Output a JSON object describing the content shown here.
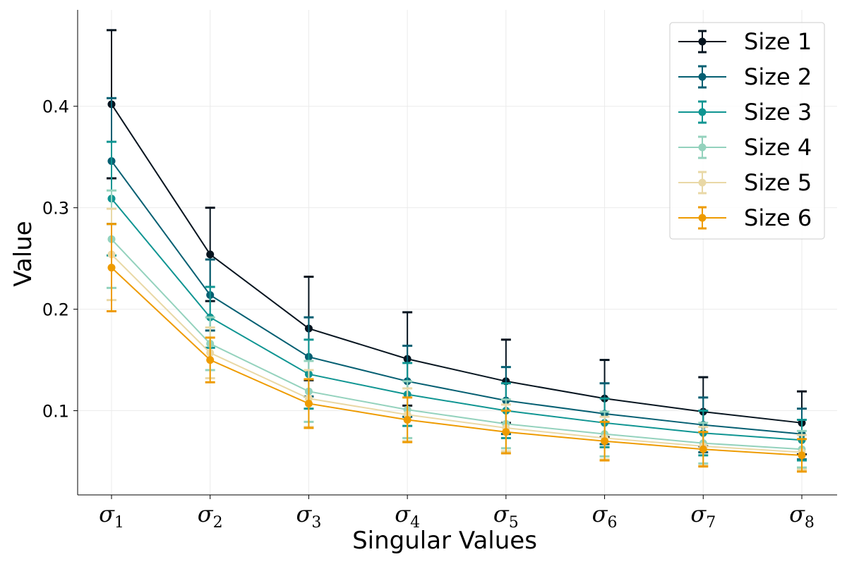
{
  "chart_data": {
    "type": "line",
    "title": "",
    "xlabel": "Singular Values",
    "ylabel": "Value",
    "categories": [
      {
        "base": "σ",
        "sub": "1"
      },
      {
        "base": "σ",
        "sub": "2"
      },
      {
        "base": "σ",
        "sub": "3"
      },
      {
        "base": "σ",
        "sub": "4"
      },
      {
        "base": "σ",
        "sub": "5"
      },
      {
        "base": "σ",
        "sub": "6"
      },
      {
        "base": "σ",
        "sub": "7"
      },
      {
        "base": "σ",
        "sub": "8"
      }
    ],
    "ylim": [
      0.017,
      0.495
    ],
    "yticks": [
      0.1,
      0.2,
      0.3,
      0.4
    ],
    "ytick_labels": [
      "0.1",
      "0.2",
      "0.3",
      "0.4"
    ],
    "grid": true,
    "legend_position": "top-right",
    "series": [
      {
        "name": "Size 1",
        "color": "#06141f",
        "values": [
          0.402,
          0.254,
          0.181,
          0.151,
          0.129,
          0.112,
          0.099,
          0.088
        ],
        "errors": [
          0.073,
          0.046,
          0.051,
          0.046,
          0.041,
          0.038,
          0.034,
          0.031
        ]
      },
      {
        "name": "Size 2",
        "color": "#055f72",
        "values": [
          0.346,
          0.214,
          0.153,
          0.129,
          0.11,
          0.097,
          0.086,
          0.077
        ],
        "errors": [
          0.062,
          0.035,
          0.039,
          0.035,
          0.033,
          0.03,
          0.027,
          0.025
        ]
      },
      {
        "name": "Size 3",
        "color": "#0f9592",
        "values": [
          0.309,
          0.192,
          0.136,
          0.116,
          0.1,
          0.088,
          0.078,
          0.071
        ],
        "errors": [
          0.056,
          0.03,
          0.034,
          0.031,
          0.027,
          0.024,
          0.022,
          0.02
        ]
      },
      {
        "name": "Size 4",
        "color": "#94d2bd",
        "values": [
          0.269,
          0.166,
          0.119,
          0.101,
          0.087,
          0.077,
          0.068,
          0.062
        ],
        "errors": [
          0.048,
          0.026,
          0.03,
          0.028,
          0.024,
          0.022,
          0.02,
          0.018
        ]
      },
      {
        "name": "Size 5",
        "color": "#e9d8a6",
        "values": [
          0.254,
          0.157,
          0.112,
          0.096,
          0.083,
          0.073,
          0.065,
          0.059
        ],
        "errors": [
          0.045,
          0.025,
          0.028,
          0.026,
          0.023,
          0.021,
          0.019,
          0.017
        ]
      },
      {
        "name": "Size 6",
        "color": "#ee9b00",
        "values": [
          0.241,
          0.15,
          0.107,
          0.091,
          0.079,
          0.07,
          0.062,
          0.056
        ],
        "errors": [
          0.043,
          0.022,
          0.024,
          0.022,
          0.021,
          0.019,
          0.017,
          0.016
        ]
      }
    ]
  }
}
